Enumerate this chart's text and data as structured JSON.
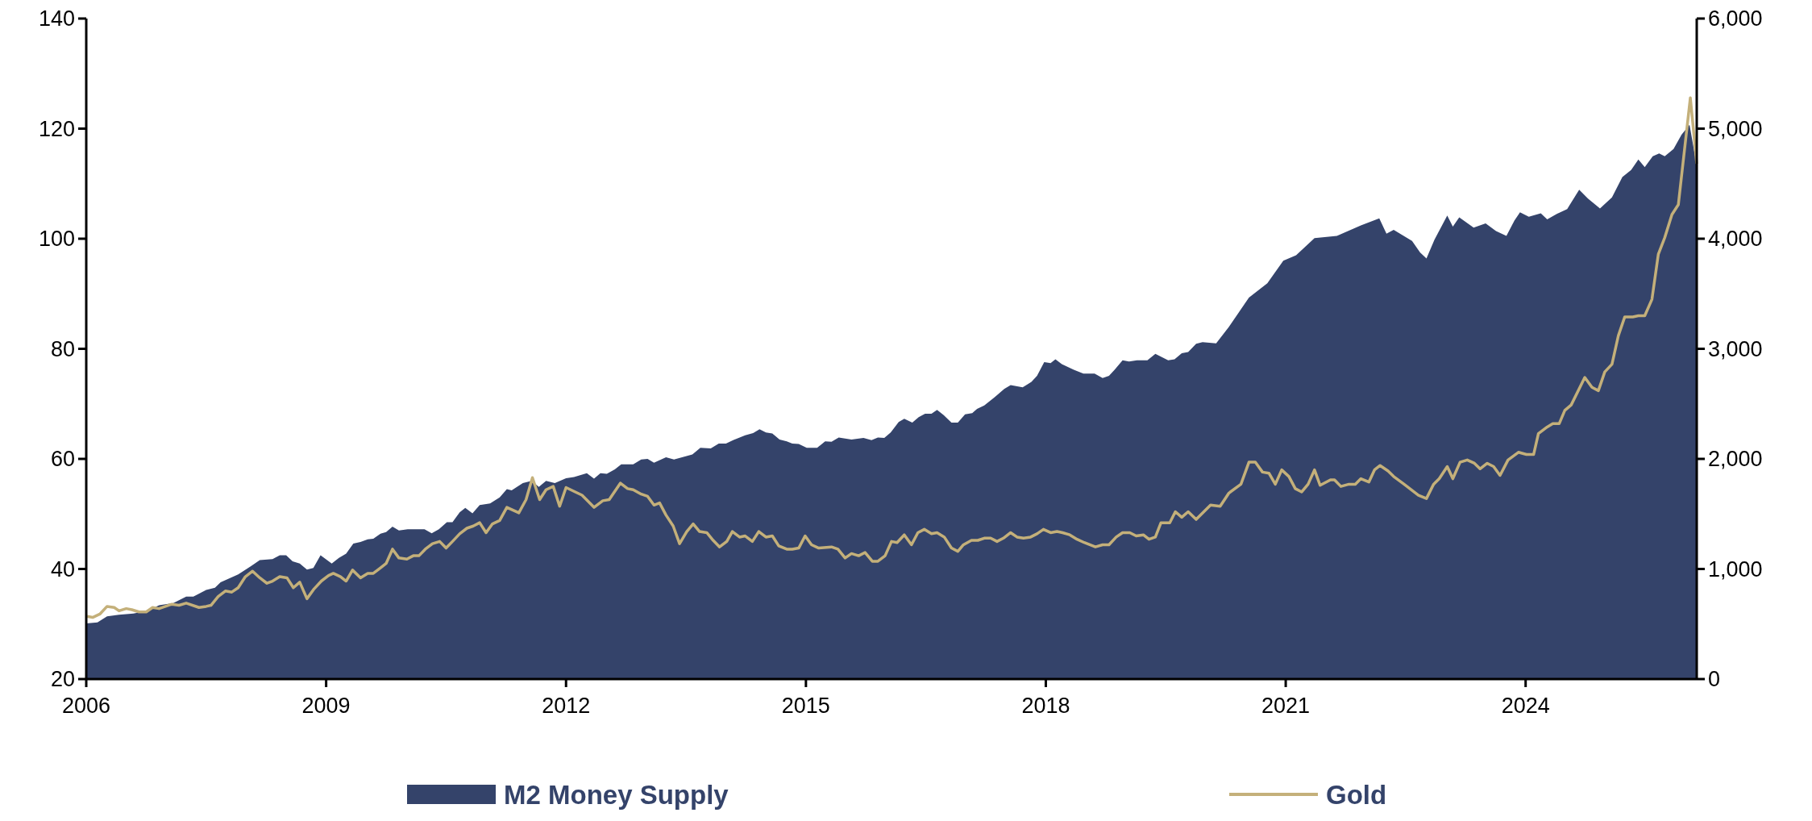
{
  "chart_data": {
    "type": "area",
    "xlim": [
      2006,
      2026.14
    ],
    "xticks": [
      2006,
      2009,
      2012,
      2015,
      2018,
      2021,
      2024
    ],
    "ylim": [
      20,
      140
    ],
    "yticks": [
      20,
      40,
      60,
      80,
      100,
      120,
      140
    ],
    "y2lim": [
      0,
      6000
    ],
    "y2ticks": [
      0,
      {
        "value": 1000,
        "label": "1,000"
      },
      {
        "value": 2000,
        "label": "2,000"
      },
      {
        "value": 3000,
        "label": "3,000"
      },
      {
        "value": 4000,
        "label": "4,000"
      },
      {
        "value": 5000,
        "label": "5,000"
      },
      {
        "value": 6000,
        "label": "6,000"
      }
    ],
    "legend": "bottom",
    "grid": false,
    "series": [
      {
        "name": "M2 Money Supply",
        "type": "area",
        "color": "#34436a",
        "x": [
          2006,
          2006.14,
          2006.26,
          2006.41,
          2006.59,
          2006.77,
          2006.91,
          2007.09,
          2007.25,
          2007.34,
          2007.5,
          2007.61,
          2007.68,
          2007.9,
          2008.06,
          2008.17,
          2008.33,
          2008.42,
          2008.5,
          2008.58,
          2008.67,
          2008.76,
          2008.84,
          2008.93,
          2009.07,
          2009.16,
          2009.25,
          2009.34,
          2009.43,
          2009.52,
          2009.59,
          2009.68,
          2009.75,
          2009.83,
          2009.91,
          2010.02,
          2010.23,
          2010.32,
          2010.41,
          2010.51,
          2010.58,
          2010.67,
          2010.74,
          2010.83,
          2010.92,
          2011.05,
          2011.17,
          2011.26,
          2011.32,
          2011.46,
          2011.57,
          2011.66,
          2011.75,
          2011.86,
          2012,
          2012.1,
          2012.26,
          2012.35,
          2012.43,
          2012.51,
          2012.61,
          2012.69,
          2012.84,
          2012.94,
          2013.02,
          2013.1,
          2013.25,
          2013.35,
          2013.58,
          2013.68,
          2013.81,
          2013.91,
          2014,
          2014.09,
          2014.24,
          2014.34,
          2014.42,
          2014.5,
          2014.58,
          2014.67,
          2014.76,
          2014.83,
          2014.91,
          2015.01,
          2015.14,
          2015.24,
          2015.32,
          2015.41,
          2015.57,
          2015.72,
          2015.82,
          2015.9,
          2015.98,
          2016.06,
          2016.16,
          2016.23,
          2016.33,
          2016.41,
          2016.49,
          2016.57,
          2016.64,
          2016.72,
          2016.82,
          2016.9,
          2016.99,
          2017.08,
          2017.14,
          2017.23,
          2017.36,
          2017.48,
          2017.56,
          2017.71,
          2017.82,
          2017.89,
          2017.98,
          2018.06,
          2018.12,
          2018.2,
          2018.35,
          2018.47,
          2018.61,
          2018.71,
          2018.79,
          2018.86,
          2018.96,
          2019.04,
          2019.14,
          2019.27,
          2019.37,
          2019.53,
          2019.61,
          2019.7,
          2019.78,
          2019.88,
          2019.96,
          2020.13,
          2020.29,
          2020.54,
          2020.77,
          2020.97,
          2021.13,
          2021.36,
          2021.64,
          2021.94,
          2022.17,
          2022.26,
          2022.35,
          2022.58,
          2022.68,
          2022.76,
          2022.86,
          2023.02,
          2023.09,
          2023.17,
          2023.35,
          2023.5,
          2023.63,
          2023.76,
          2023.86,
          2023.93,
          2024.04,
          2024.19,
          2024.27,
          2024.39,
          2024.52,
          2024.67,
          2024.78,
          2024.93,
          2025.08,
          2025.21,
          2025.32,
          2025.41,
          2025.49,
          2025.59,
          2025.67,
          2025.74,
          2025.85,
          2025.95,
          2026.05,
          2026.14
        ],
        "values": [
          30.1,
          30.3,
          31.4,
          31.7,
          31.9,
          32.4,
          33.4,
          33.8,
          35,
          35,
          36.2,
          36.6,
          37.6,
          39,
          40.5,
          41.6,
          41.8,
          42.5,
          42.5,
          41.4,
          41,
          39.9,
          40.2,
          42.5,
          41,
          42,
          42.8,
          44.6,
          44.9,
          45.4,
          45.5,
          46.4,
          46.7,
          47.7,
          47,
          47.2,
          47.2,
          46.5,
          47.2,
          48.5,
          48.5,
          50.3,
          51.1,
          50.1,
          51.6,
          51.9,
          53,
          54.5,
          54.3,
          55.6,
          56,
          54.9,
          56,
          55.6,
          56.5,
          56.7,
          57.4,
          56.4,
          57.4,
          57.3,
          58.1,
          59,
          59,
          59.9,
          60,
          59.3,
          60.3,
          59.9,
          60.8,
          62,
          61.9,
          62.8,
          62.8,
          63.4,
          64.3,
          64.7,
          65.4,
          64.8,
          64.6,
          63.5,
          63.2,
          62.8,
          62.7,
          62,
          62,
          63.2,
          63.1,
          63.9,
          63.5,
          63.8,
          63.4,
          63.9,
          63.8,
          64.8,
          66.7,
          67.3,
          66.6,
          67.6,
          68.2,
          68.2,
          68.9,
          68,
          66.6,
          66.6,
          68.1,
          68.3,
          69.1,
          69.7,
          71.2,
          72.7,
          73.4,
          73,
          74,
          75.1,
          77.6,
          77.4,
          78.1,
          77.2,
          76.2,
          75.5,
          75.5,
          74.7,
          75.1,
          76.2,
          77.9,
          77.7,
          77.9,
          77.9,
          79.1,
          77.9,
          78.1,
          79.2,
          79.4,
          80.9,
          81.2,
          81,
          84,
          89.3,
          91.9,
          96,
          97,
          100.1,
          100.5,
          102.4,
          103.7,
          100.9,
          101.6,
          99.6,
          97.5,
          96.4,
          99.8,
          104.2,
          102.2,
          103.9,
          102,
          102.8,
          101.4,
          100.5,
          103.3,
          104.8,
          104,
          104.6,
          103.5,
          104.5,
          105.4,
          108.9,
          107.3,
          105.5,
          107.5,
          111.2,
          112.5,
          114.4,
          113,
          115,
          115.5,
          115,
          116.3,
          118.9,
          120.7,
          113.3
        ]
      },
      {
        "name": "Gold",
        "type": "line",
        "axis": "y2",
        "color": "#c4b07a",
        "x": [
          2006.01,
          2006.08,
          2006.17,
          2006.26,
          2006.35,
          2006.41,
          2006.5,
          2006.57,
          2006.66,
          2006.75,
          2006.83,
          2006.91,
          2007.07,
          2007.16,
          2007.25,
          2007.41,
          2007.5,
          2007.56,
          2007.65,
          2007.74,
          2007.82,
          2007.9,
          2007.99,
          2008.08,
          2008.17,
          2008.26,
          2008.33,
          2008.42,
          2008.51,
          2008.59,
          2008.67,
          2008.76,
          2008.85,
          2008.94,
          2009.03,
          2009.09,
          2009.18,
          2009.25,
          2009.33,
          2009.43,
          2009.52,
          2009.59,
          2009.68,
          2009.75,
          2009.83,
          2009.91,
          2010.01,
          2010.09,
          2010.16,
          2010.24,
          2010.33,
          2010.42,
          2010.5,
          2010.58,
          2010.67,
          2010.76,
          2010.84,
          2010.92,
          2011,
          2011.08,
          2011.17,
          2011.26,
          2011.41,
          2011.5,
          2011.58,
          2011.67,
          2011.75,
          2011.84,
          2011.92,
          2012,
          2012.2,
          2012.35,
          2012.46,
          2012.54,
          2012.68,
          2012.77,
          2012.84,
          2012.94,
          2013.02,
          2013.1,
          2013.17,
          2013.25,
          2013.34,
          2013.42,
          2013.51,
          2013.59,
          2013.67,
          2013.76,
          2013.84,
          2013.92,
          2014.01,
          2014.08,
          2014.17,
          2014.24,
          2014.33,
          2014.41,
          2014.5,
          2014.58,
          2014.66,
          2014.76,
          2014.83,
          2014.91,
          2014.99,
          2015.07,
          2015.16,
          2015.32,
          2015.4,
          2015.49,
          2015.57,
          2015.66,
          2015.74,
          2015.83,
          2015.9,
          2015.99,
          2016.07,
          2016.14,
          2016.23,
          2016.32,
          2016.4,
          2016.48,
          2016.57,
          2016.64,
          2016.73,
          2016.82,
          2016.9,
          2016.97,
          2017.07,
          2017.15,
          2017.23,
          2017.31,
          2017.39,
          2017.47,
          2017.56,
          2017.64,
          2017.72,
          2017.81,
          2017.89,
          2017.97,
          2018.06,
          2018.14,
          2018.21,
          2018.3,
          2018.39,
          2018.48,
          2018.62,
          2018.71,
          2018.79,
          2018.88,
          2018.96,
          2019.05,
          2019.13,
          2019.22,
          2019.29,
          2019.37,
          2019.44,
          2019.55,
          2019.62,
          2019.7,
          2019.78,
          2019.88,
          2020.06,
          2020.18,
          2020.29,
          2020.44,
          2020.54,
          2020.62,
          2020.71,
          2020.79,
          2020.87,
          2020.95,
          2021.04,
          2021.12,
          2021.2,
          2021.28,
          2021.36,
          2021.43,
          2021.56,
          2021.61,
          2021.69,
          2021.79,
          2021.87,
          2021.94,
          2022.04,
          2022.11,
          2022.18,
          2022.28,
          2022.35,
          2022.48,
          2022.66,
          2022.76,
          2022.85,
          2022.92,
          2023.02,
          2023.09,
          2023.18,
          2023.27,
          2023.36,
          2023.43,
          2023.52,
          2023.6,
          2023.68,
          2023.78,
          2023.91,
          2024.01,
          2024.1,
          2024.16,
          2024.27,
          2024.34,
          2024.42,
          2024.49,
          2024.57,
          2024.74,
          2024.83,
          2024.91,
          2024.99,
          2025.08,
          2025.16,
          2025.24,
          2025.34,
          2025.41,
          2025.49,
          2025.58,
          2025.66,
          2025.74,
          2025.83,
          2025.91,
          2026.06,
          2026.14
        ],
        "values": [
          570,
          560,
          590,
          660,
          650,
          620,
          640,
          630,
          610,
          610,
          650,
          640,
          680,
          670,
          690,
          650,
          660,
          670,
          750,
          800,
          790,
          830,
          930,
          980,
          920,
          870,
          890,
          930,
          920,
          830,
          880,
          730,
          820,
          890,
          940,
          960,
          930,
          890,
          990,
          920,
          960,
          960,
          1010,
          1050,
          1180,
          1100,
          1090,
          1120,
          1120,
          1180,
          1230,
          1250,
          1190,
          1250,
          1320,
          1370,
          1390,
          1420,
          1330,
          1410,
          1440,
          1560,
          1510,
          1630,
          1830,
          1630,
          1720,
          1750,
          1570,
          1740,
          1670,
          1560,
          1620,
          1630,
          1780,
          1730,
          1720,
          1680,
          1660,
          1580,
          1600,
          1490,
          1390,
          1230,
          1340,
          1410,
          1340,
          1330,
          1260,
          1200,
          1250,
          1340,
          1290,
          1300,
          1250,
          1340,
          1290,
          1300,
          1210,
          1180,
          1180,
          1190,
          1300,
          1220,
          1190,
          1200,
          1180,
          1100,
          1140,
          1120,
          1150,
          1070,
          1070,
          1120,
          1250,
          1240,
          1310,
          1220,
          1330,
          1360,
          1320,
          1330,
          1290,
          1190,
          1160,
          1220,
          1260,
          1260,
          1280,
          1280,
          1250,
          1280,
          1330,
          1290,
          1280,
          1290,
          1320,
          1360,
          1330,
          1340,
          1330,
          1310,
          1270,
          1240,
          1200,
          1220,
          1220,
          1290,
          1330,
          1330,
          1300,
          1310,
          1270,
          1290,
          1420,
          1420,
          1520,
          1470,
          1520,
          1450,
          1580,
          1570,
          1690,
          1770,
          1970,
          1970,
          1880,
          1870,
          1770,
          1900,
          1840,
          1730,
          1700,
          1770,
          1900,
          1760,
          1810,
          1810,
          1750,
          1770,
          1770,
          1820,
          1790,
          1900,
          1940,
          1890,
          1840,
          1770,
          1670,
          1640,
          1770,
          1820,
          1930,
          1820,
          1970,
          1990,
          1960,
          1910,
          1960,
          1930,
          1850,
          1990,
          2060,
          2040,
          2040,
          2230,
          2290,
          2320,
          2320,
          2440,
          2490,
          2740,
          2650,
          2620,
          2790,
          2860,
          3120,
          3290,
          3290,
          3300,
          3300,
          3450,
          3860,
          4010,
          4220,
          4310,
          5280,
          4680
        ]
      }
    ]
  }
}
